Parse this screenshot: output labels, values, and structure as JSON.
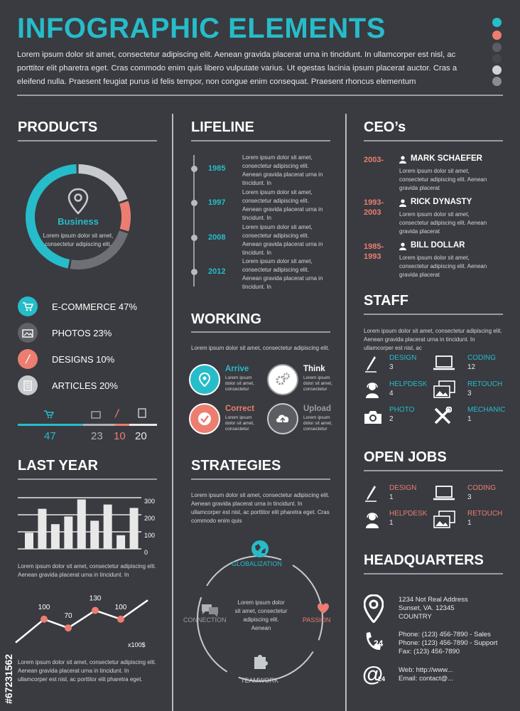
{
  "header": {
    "title": "INFOGRAPHIC ELEMENTS",
    "intro": "Lorem ipsum dolor sit amet, consectetur adipiscing elit. Aenean gravida placerat urna in tincidunt. In ullamcorper est nisl, ac porttitor elit pharetra eget. Cras commodo enim quis libero vulputate varius. Ut egestas lacinia ipsum placerat auctor. Cras a eleifend nulla. Praesent feugiat purus id felis tempor, non congue enim consequat. Praesent rhoncus elementum",
    "palette": [
      "#27bcc9",
      "#ec7d71",
      "#5b5d62",
      "#393b40",
      "#cfd4d6",
      "#8a8c90"
    ]
  },
  "products": {
    "heading": "PRODUCTS",
    "center_title": "Business",
    "center_text": "Lorem ipsum dolor sit amet, consectetur adipiscing elit.",
    "legend": [
      {
        "label": "E-COMMERCE 47%",
        "color": "#27bcc9",
        "icon": "cart-icon"
      },
      {
        "label": "PHOTOS 23%",
        "color": "#5f6166",
        "icon": "photo-icon"
      },
      {
        "label": "DESIGNS 10%",
        "color": "#ec7d71",
        "icon": "pencil-icon"
      },
      {
        "label": "ARTICLES 20%",
        "color": "#c7cbcd",
        "icon": "document-icon"
      }
    ],
    "bar_values": [
      {
        "value": "47",
        "color": "#27bcc9"
      },
      {
        "value": "23",
        "color": "#b0b2b6"
      },
      {
        "value": "10",
        "color": "#ec7d71"
      },
      {
        "value": "20",
        "color": "#e8e8e8"
      }
    ],
    "chart_data": {
      "type": "pie",
      "categories": [
        "E-COMMERCE",
        "PHOTOS",
        "DESIGNS",
        "ARTICLES"
      ],
      "values": [
        47,
        23,
        10,
        20
      ],
      "colors": [
        "#27bcc9",
        "#6e7075",
        "#ec7d71",
        "#c7cbcd"
      ]
    }
  },
  "last_year": {
    "heading": "LAST YEAR",
    "bar_chart": {
      "type": "bar",
      "values": [
        95,
        235,
        145,
        190,
        290,
        165,
        260,
        80,
        240
      ],
      "ylim": [
        0,
        300
      ],
      "ticks": [
        "300",
        "200",
        "100",
        "0"
      ]
    },
    "text1": "Lorem ipsum dolor sit amet, consectetur adipiscing elit. Aenean gravida placerat urna in tincidunt. In",
    "line_chart": {
      "type": "line",
      "values": [
        20,
        100,
        70,
        130,
        100,
        165
      ],
      "point_labels": [
        "",
        "100",
        "70",
        "130",
        "100",
        ""
      ],
      "unit": "x100$"
    },
    "text2": "Lorem ipsum dolor sit amet, consectetur adipiscing elit. Aenean gravida placerat urna in tincidunt. In ullamcorper est nisl, ac porttitor elit pharetra eget."
  },
  "lifeline": {
    "heading": "LIFELINE",
    "items": [
      {
        "year": "1985",
        "text": "Lorem ipsum dolor sit amet, consectetur adipiscing elit. Aenean gravida placerat urna in tincidunt. In"
      },
      {
        "year": "1997",
        "text": "Lorem ipsum dolor sit amet, consectetur adipiscing elit. Aenean gravida placerat urna in tincidunt. In"
      },
      {
        "year": "2008",
        "text": "Lorem ipsum dolor sit amet, consectetur adipiscing elit. Aenean gravida placerat urna in tincidunt. In"
      },
      {
        "year": "2012",
        "text": "Lorem ipsum dolor sit amet, consectetur adipiscing elit. Aenean gravida placerat urna in tincidunt. In"
      }
    ]
  },
  "working": {
    "heading": "WORKING",
    "text": "Lorem ipsum dolor sit amet, consectetur adipiscing elit.",
    "items": [
      {
        "title": "Arrive",
        "desc": "Lorem ipsum dolor sit amet, consectetur",
        "color": "#27bcc9",
        "icon": "location-pin-icon"
      },
      {
        "title": "Think",
        "desc": "Lorem ipsum dolor sit amet, consectetur",
        "color": "#ffffff",
        "icon": "gears-icon"
      },
      {
        "title": "Correct",
        "desc": "Lorem ipsum dolor sit amet, consectetur",
        "color": "#ec7d71",
        "icon": "checkmark-icon"
      },
      {
        "title": "Upload",
        "desc": "Lorem ipsum dolor sit amet, consectetur",
        "color": "#9a9ca1",
        "icon": "cloud-upload-icon"
      }
    ]
  },
  "strategies": {
    "heading": "STRATEGIES",
    "text": "Lorem ipsum dolor sit amet, consectetur adipiscing elit. Aenean gravida placerat urna in tincidunt. In ullamcorper est nisl, ac porttitor elit pharetra eget. Cras commodo enim quis",
    "center_text": "Lorem ipsum dolor sit amet, consectetur adipiscing elit. Aenean",
    "globalization": "GLOBALIZATION",
    "connection": "CONNECTION",
    "passion": "PASSION",
    "teamwork": "TEAMWORK"
  },
  "ceos": {
    "heading": "CEO’s",
    "items": [
      {
        "years": "2003-",
        "name": "MARK SCHAEFER",
        "desc": "Lorem ipsum dolor sit amet, consectetur adipiscing elit. Aenean gravida placerat"
      },
      {
        "years": "1993-\n2003",
        "name": "RICK DYNASTY",
        "desc": "Lorem ipsum dolor sit amet, consectetur adipiscing elit. Aenean gravida placerat"
      },
      {
        "years": "1985-\n1993",
        "name": "BILL DOLLAR",
        "desc": "Lorem ipsum dolor sit amet, consectetur adipiscing elit. Aenean gravida placerat"
      }
    ]
  },
  "staff": {
    "heading": "STAFF",
    "text": "Lorem ipsum dolor sit amet, consectetur adipiscing elit. Aenean gravida placerat urna in tincidunt. In ullamcorper est nisl, ac",
    "items": [
      {
        "label": "DESIGN",
        "count": "3",
        "icon": "pencil-icon"
      },
      {
        "label": "CODING",
        "count": "12",
        "icon": "laptop-icon"
      },
      {
        "label": "HELPDESK",
        "count": "4",
        "icon": "headset-icon"
      },
      {
        "label": "RETOUCH",
        "count": "3",
        "icon": "photos-icon"
      },
      {
        "label": "PHOTO",
        "count": "2",
        "icon": "camera-icon"
      },
      {
        "label": "MECHANIC",
        "count": "1",
        "icon": "tools-icon"
      }
    ]
  },
  "open_jobs": {
    "heading": "OPEN JOBS",
    "items": [
      {
        "label": "DESIGN",
        "count": "1",
        "icon": "pencil-icon"
      },
      {
        "label": "CODING",
        "count": "3",
        "icon": "laptop-icon"
      },
      {
        "label": "HELPDESK",
        "count": "1",
        "icon": "headset-icon"
      },
      {
        "label": "RETOUCH",
        "count": "1",
        "icon": "photos-icon"
      }
    ]
  },
  "headquarters": {
    "heading": "HEADQUARTERS",
    "address": [
      "1234 Not Real Address",
      "Sunset, VA. 12345",
      "COUNTRY"
    ],
    "phones": [
      "Phone: (123) 456-7890 - Sales",
      "Phone: (123) 456-7890 - Support",
      "Fax: (123) 456-7890"
    ],
    "web": [
      "Web: http://www...",
      "Email: contact@..."
    ],
    "badge_24": "24",
    "badge_at24": "24"
  },
  "side_id": "#67231562"
}
